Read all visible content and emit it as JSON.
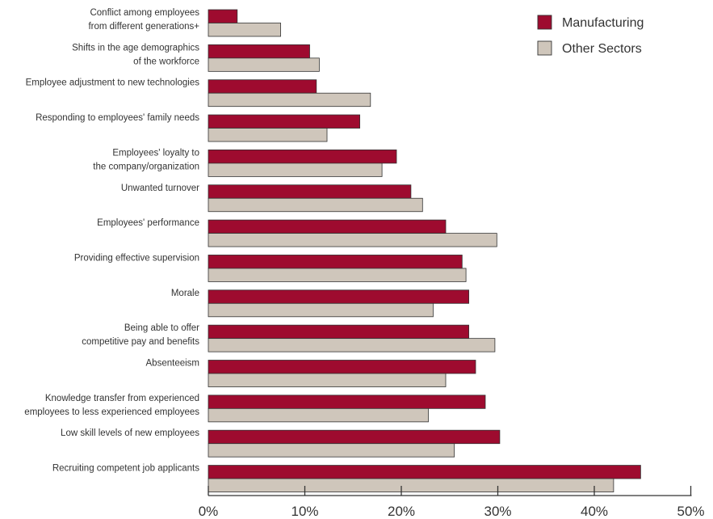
{
  "chart_data": {
    "type": "bar",
    "orientation": "horizontal",
    "categories": [
      [
        "Conflict among employees",
        "from different generations+"
      ],
      [
        "Shifts in the age demographics",
        "of the workforce"
      ],
      [
        "Employee adjustment to new technologies"
      ],
      [
        "Responding to employees' family needs"
      ],
      [
        "Employees' loyalty to",
        "the company/organization"
      ],
      [
        "Unwanted turnover"
      ],
      [
        "Employees' performance"
      ],
      [
        "Providing effective supervision"
      ],
      [
        "Morale"
      ],
      [
        "Being able to offer",
        "competitive pay and benefits"
      ],
      [
        "Absenteeism"
      ],
      [
        "Knowledge transfer from experienced",
        "employees to less experienced employees"
      ],
      [
        "Low skill levels of new employees"
      ],
      [
        "Recruiting competent job applicants"
      ]
    ],
    "series": [
      {
        "name": "Manufacturing",
        "color": "#9e0b2f",
        "values": [
          3,
          10.5,
          11.2,
          15.7,
          19.5,
          21,
          24.6,
          26.3,
          27,
          27,
          27.7,
          28.7,
          30.2,
          44.8
        ]
      },
      {
        "name": "Other Sectors",
        "color": "#cfc6bb",
        "values": [
          7.5,
          11.5,
          16.8,
          12.3,
          18,
          22.2,
          29.9,
          26.7,
          23.3,
          29.7,
          24.6,
          22.8,
          25.5,
          42
        ]
      }
    ],
    "xlim": [
      0,
      50
    ],
    "x_ticks": [
      "0%",
      "10%",
      "20%",
      "30%",
      "40%",
      "50%"
    ],
    "legend_position": "top-right",
    "grid": false,
    "title": "",
    "xlabel": "",
    "ylabel": ""
  }
}
